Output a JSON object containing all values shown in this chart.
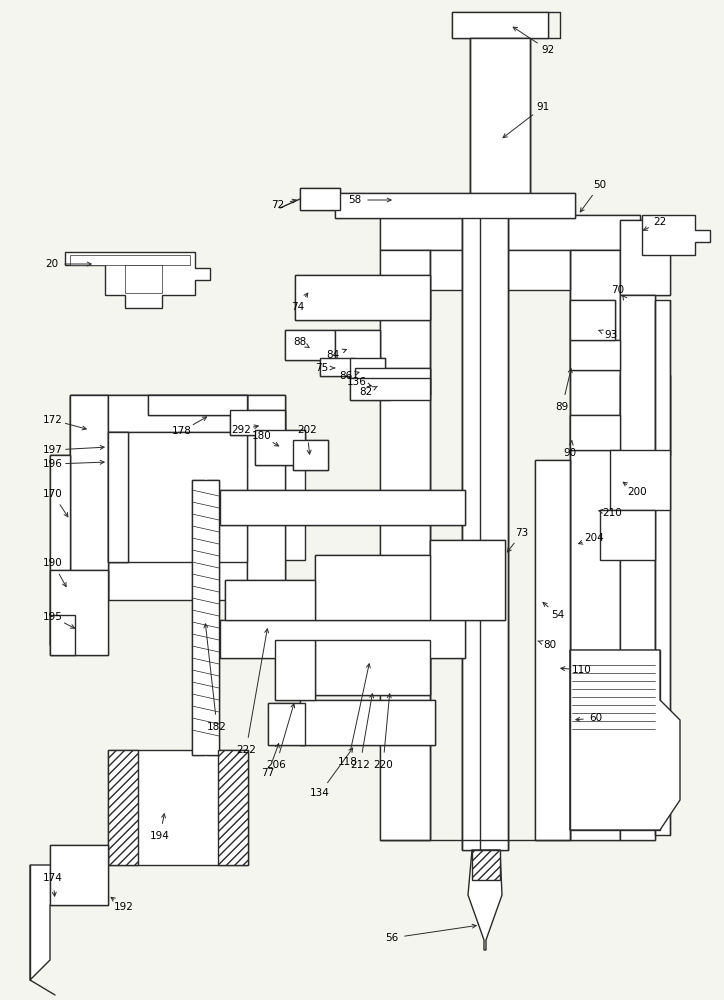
{
  "bg_color": "#f5f5f0",
  "line_color": "#2a2a2a",
  "lw": 1.0,
  "labels": [
    [
      "20",
      62,
      268
    ],
    [
      "22",
      663,
      223
    ],
    [
      "50",
      598,
      187
    ],
    [
      "54",
      555,
      618
    ],
    [
      "56",
      393,
      935
    ],
    [
      "58",
      358,
      203
    ],
    [
      "60",
      594,
      718
    ],
    [
      "70",
      617,
      292
    ],
    [
      "72",
      280,
      208
    ],
    [
      "73",
      521,
      534
    ],
    [
      "74",
      300,
      307
    ],
    [
      "75",
      323,
      370
    ],
    [
      "77",
      270,
      773
    ],
    [
      "80",
      549,
      648
    ],
    [
      "82",
      368,
      393
    ],
    [
      "84",
      335,
      358
    ],
    [
      "86",
      348,
      378
    ],
    [
      "88",
      302,
      344
    ],
    [
      "89",
      564,
      408
    ],
    [
      "90",
      571,
      453
    ],
    [
      "91",
      543,
      108
    ],
    [
      "92",
      549,
      52
    ],
    [
      "93",
      610,
      335
    ],
    [
      "110",
      583,
      672
    ],
    [
      "118",
      348,
      762
    ],
    [
      "134",
      318,
      793
    ],
    [
      "136",
      358,
      380
    ],
    [
      "170",
      55,
      497
    ],
    [
      "172",
      55,
      422
    ],
    [
      "174",
      55,
      878
    ],
    [
      "178",
      183,
      433
    ],
    [
      "180",
      263,
      438
    ],
    [
      "182",
      218,
      727
    ],
    [
      "190",
      55,
      563
    ],
    [
      "192",
      125,
      907
    ],
    [
      "194",
      160,
      838
    ],
    [
      "195",
      55,
      617
    ],
    [
      "196",
      55,
      465
    ],
    [
      "197",
      55,
      450
    ],
    [
      "200",
      636,
      495
    ],
    [
      "202",
      308,
      433
    ],
    [
      "204",
      593,
      540
    ],
    [
      "206",
      278,
      767
    ],
    [
      "210",
      611,
      515
    ],
    [
      "212",
      362,
      767
    ],
    [
      "220",
      385,
      767
    ],
    [
      "222",
      248,
      747
    ],
    [
      "292",
      243,
      433
    ]
  ]
}
